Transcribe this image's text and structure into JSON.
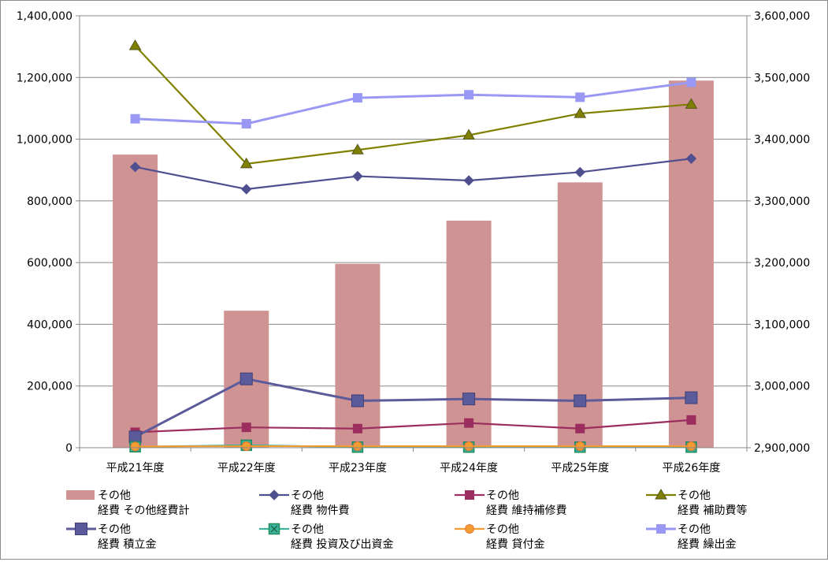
{
  "chart_data": {
    "type": "bar+line",
    "categories": [
      "平成21年度",
      "平成22年度",
      "平成23年度",
      "平成24年度",
      "平成25年度",
      "平成26年度"
    ],
    "left_axis": {
      "min": 0,
      "max": 1400000,
      "step": 200000,
      "ticks": [
        "0",
        "200,000",
        "400,000",
        "600,000",
        "800,000",
        "1,000,000",
        "1,200,000",
        "1,400,000"
      ]
    },
    "right_axis": {
      "min": 2900000,
      "max": 3600000,
      "step": 100000,
      "ticks": [
        "2,900,000",
        "3,000,000",
        "3,100,000",
        "3,200,000",
        "3,300,000",
        "3,400,000",
        "3,500,000",
        "3,600,000"
      ]
    },
    "grid": "horizontal",
    "legend_position": "bottom",
    "series": [
      {
        "name_line1": "その他",
        "name_line2": "経費 その他経費計",
        "kind": "bar",
        "axis": "right",
        "color": "#d09393",
        "marker": "rect",
        "values": [
          3375000,
          3122000,
          3198000,
          3268000,
          3330000,
          3495000
        ]
      },
      {
        "name_line1": "その他",
        "name_line2": "経費 物件費",
        "kind": "line",
        "axis": "left",
        "color": "#4f4f8f",
        "marker": "diamond",
        "values": [
          910000,
          838000,
          880000,
          866000,
          893000,
          937000
        ]
      },
      {
        "name_line1": "その他",
        "name_line2": "経費 維持補修費",
        "kind": "line",
        "axis": "left",
        "color": "#9b2d5f",
        "marker": "square",
        "values": [
          50000,
          66000,
          62000,
          80000,
          62000,
          90000
        ]
      },
      {
        "name_line1": "その他",
        "name_line2": "経費 補助費等",
        "kind": "line",
        "axis": "left",
        "color": "#808000",
        "marker": "triangle",
        "values": [
          1303000,
          920000,
          965000,
          1013000,
          1083000,
          1113000
        ]
      },
      {
        "name_line1": "その他",
        "name_line2": "経費 積立金",
        "kind": "line",
        "axis": "left",
        "color": "#5b5b9b",
        "marker": "bigsquare",
        "values": [
          35000,
          223000,
          152000,
          158000,
          152000,
          162000
        ]
      },
      {
        "name_line1": "その他",
        "name_line2": "経費 投資及び出資金",
        "kind": "line",
        "axis": "left",
        "color": "#3cb4a0",
        "marker": "xsquare",
        "values": [
          3000,
          8000,
          2000,
          2000,
          2000,
          2000
        ]
      },
      {
        "name_line1": "その他",
        "name_line2": "経費 貸付金",
        "kind": "line",
        "axis": "left",
        "color": "#f39c31",
        "marker": "circle",
        "values": [
          4000,
          5000,
          5000,
          5000,
          5000,
          5000
        ]
      },
      {
        "name_line1": "その他",
        "name_line2": "経費 繰出金",
        "kind": "line",
        "axis": "right",
        "color": "#9999f5",
        "marker": "square",
        "values": [
          3433000,
          3425000,
          3467000,
          3472000,
          3468000,
          3492000
        ]
      }
    ]
  }
}
